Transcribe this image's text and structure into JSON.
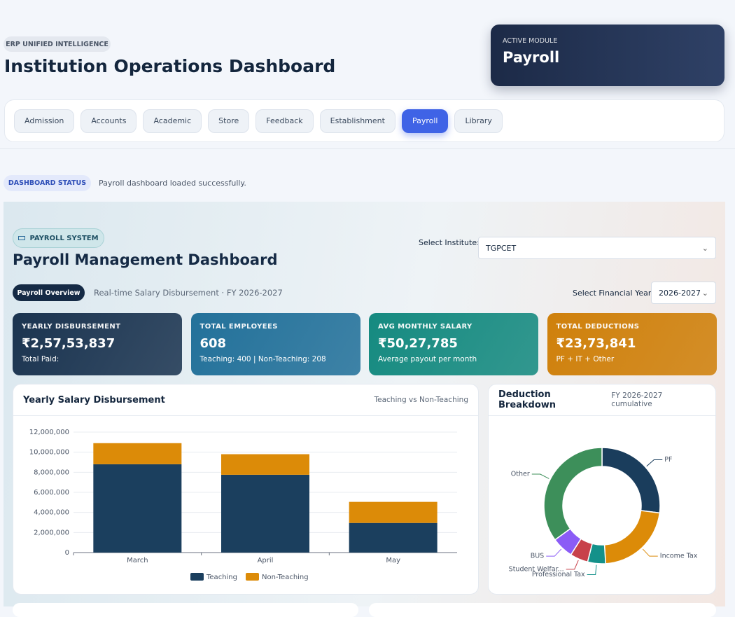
{
  "header": {
    "badge": "ERP UNIFIED INTELLIGENCE",
    "title": "Institution Operations Dashboard"
  },
  "active_module": {
    "label": "ACTIVE MODULE",
    "name": "Payroll"
  },
  "nav": {
    "tabs": [
      "Admission",
      "Accounts",
      "Academic",
      "Store",
      "Feedback",
      "Establishment",
      "Payroll",
      "Library"
    ],
    "active": 6
  },
  "status": {
    "label": "DASHBOARD STATUS",
    "message": "Payroll dashboard loaded successfully."
  },
  "payroll": {
    "badge": "PAYROLL SYSTEM",
    "title": "Payroll Management Dashboard",
    "institute_label": "Select Institute:",
    "institute": "TGPCET",
    "overview": "Payroll Overview",
    "subtitle": "Real-time Salary Disbursement · FY 2026-2027",
    "year_label": "Select Financial Year:",
    "year": "2026-2027"
  },
  "kpis": [
    {
      "label": "YEARLY DISBURSEMENT",
      "value": "₹2,57,53,837",
      "note": "Total Paid:",
      "color": "#1b3450"
    },
    {
      "label": "TOTAL EMPLOYEES",
      "value": "608",
      "note": "Teaching: 400 | Non-Teaching: 208",
      "color": "#23719a"
    },
    {
      "label": "AVG MONTHLY SALARY",
      "value": "₹50,27,785",
      "note": "Average payout per month",
      "color": "#158a80"
    },
    {
      "label": "TOTAL DEDUCTIONS",
      "value": "₹23,73,841",
      "note": "PF + IT + Other",
      "color": "#cf800b"
    }
  ],
  "bar_chart": {
    "type": "bar",
    "stacked": true,
    "title": "Yearly Salary Disbursement",
    "subtitle": "Teaching vs Non-Teaching",
    "categories": [
      "March",
      "April",
      "May"
    ],
    "series": [
      {
        "name": "Teaching",
        "color": "#1b3f5e",
        "values": [
          8800000,
          7750000,
          2950000
        ]
      },
      {
        "name": "Non-Teaching",
        "color": "#dc8b08",
        "values": [
          2100000,
          2050000,
          2100000
        ]
      }
    ],
    "ylim": [
      0,
      12000000
    ],
    "yticks": [
      0,
      {
        "value": 2000000,
        "label": "2,000,000"
      },
      {
        "value": 4000000,
        "label": "4,000,000"
      },
      {
        "value": 6000000,
        "label": "6,000,000"
      },
      {
        "value": 8000000,
        "label": "8,000,000"
      },
      {
        "value": 10000000,
        "label": "10,000,000"
      },
      {
        "value": 12000000,
        "label": "12,000,000"
      }
    ],
    "grid": true
  },
  "donut": {
    "type": "pie",
    "title": "Deduction Breakdown",
    "subtitle": "FY 2026-2027 cumulative",
    "categories": [
      "PF",
      "Income Tax",
      "Professional Tax",
      "Student Welfar...",
      "BUS",
      "Other"
    ],
    "values": [
      27,
      22,
      5,
      5,
      6,
      35
    ],
    "colors": [
      "#1a3d5c",
      "#dc8b08",
      "#14918a",
      "#c8414a",
      "#8b5cf6",
      "#3d8f5a"
    ]
  }
}
